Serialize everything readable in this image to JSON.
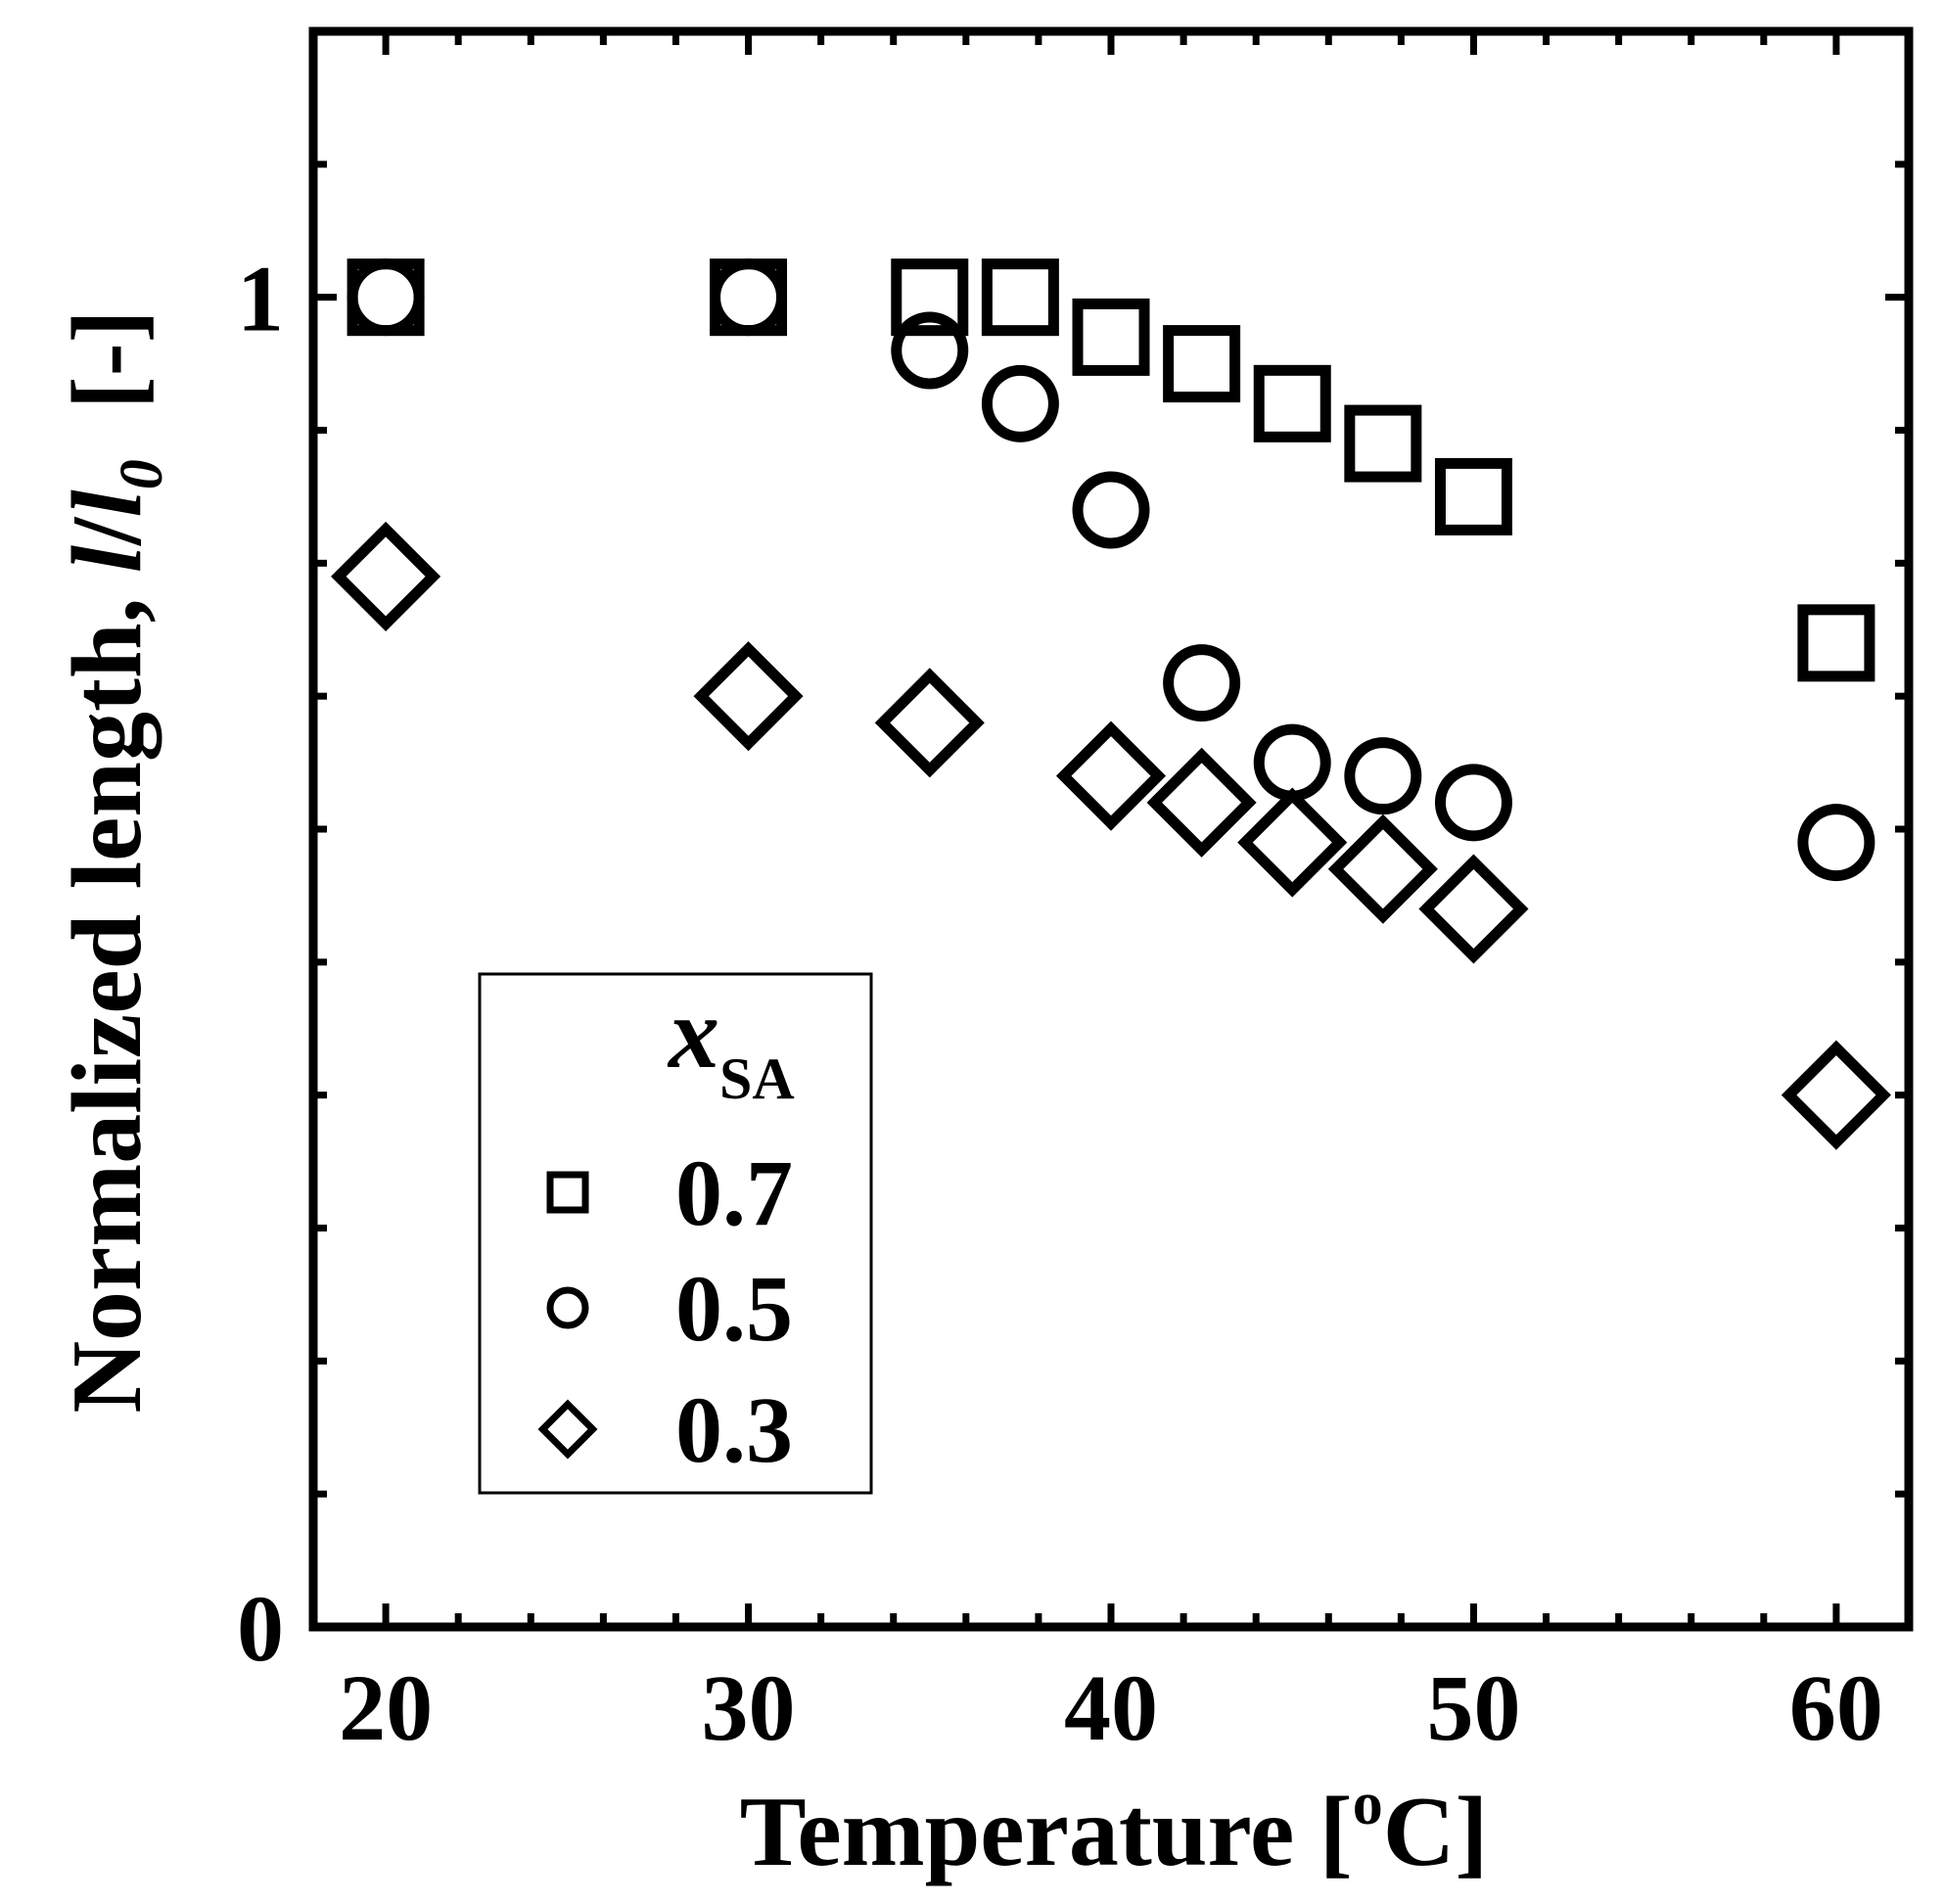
{
  "chart_data": {
    "type": "scatter",
    "xlabel_main": "Temperature [",
    "xlabel_sup": "o",
    "xlabel_end": "C]",
    "ylabel_main": "Normalized length, ",
    "ylabel_var": "l",
    "ylabel_slash": "/",
    "ylabel_var2": "l",
    "ylabel_sub": "0",
    "ylabel_end": "  [-]",
    "xlim": [
      18,
      62
    ],
    "ylim": [
      0,
      1.2
    ],
    "x_ticks": [
      20,
      30,
      40,
      50,
      60
    ],
    "y_ticks": [
      0,
      1
    ],
    "y_tick_labels": [
      "0",
      "1"
    ],
    "legend": {
      "title_main": "x",
      "title_sub": "SA",
      "placement": "lower-left"
    },
    "series": [
      {
        "name": "0.7",
        "marker": "square",
        "x": [
          20,
          30,
          35,
          37.5,
          40,
          42.5,
          45,
          47.5,
          50,
          60
        ],
        "y": [
          1.0,
          1.0,
          1.0,
          1.0,
          0.97,
          0.95,
          0.92,
          0.89,
          0.85,
          0.74
        ]
      },
      {
        "name": "0.5",
        "marker": "circle",
        "x": [
          20,
          30,
          35,
          37.5,
          40,
          42.5,
          45,
          47.5,
          50,
          60
        ],
        "y": [
          1.0,
          1.0,
          0.96,
          0.92,
          0.84,
          0.71,
          0.65,
          0.64,
          0.62,
          0.59
        ]
      },
      {
        "name": "0.3",
        "marker": "diamond",
        "x": [
          20,
          30,
          35,
          37.5,
          40,
          42.5,
          45,
          47.5,
          50,
          60
        ],
        "y": [
          0.79,
          0.7,
          0.68,
          null,
          0.64,
          0.62,
          0.59,
          0.57,
          0.54,
          0.4
        ]
      }
    ]
  }
}
